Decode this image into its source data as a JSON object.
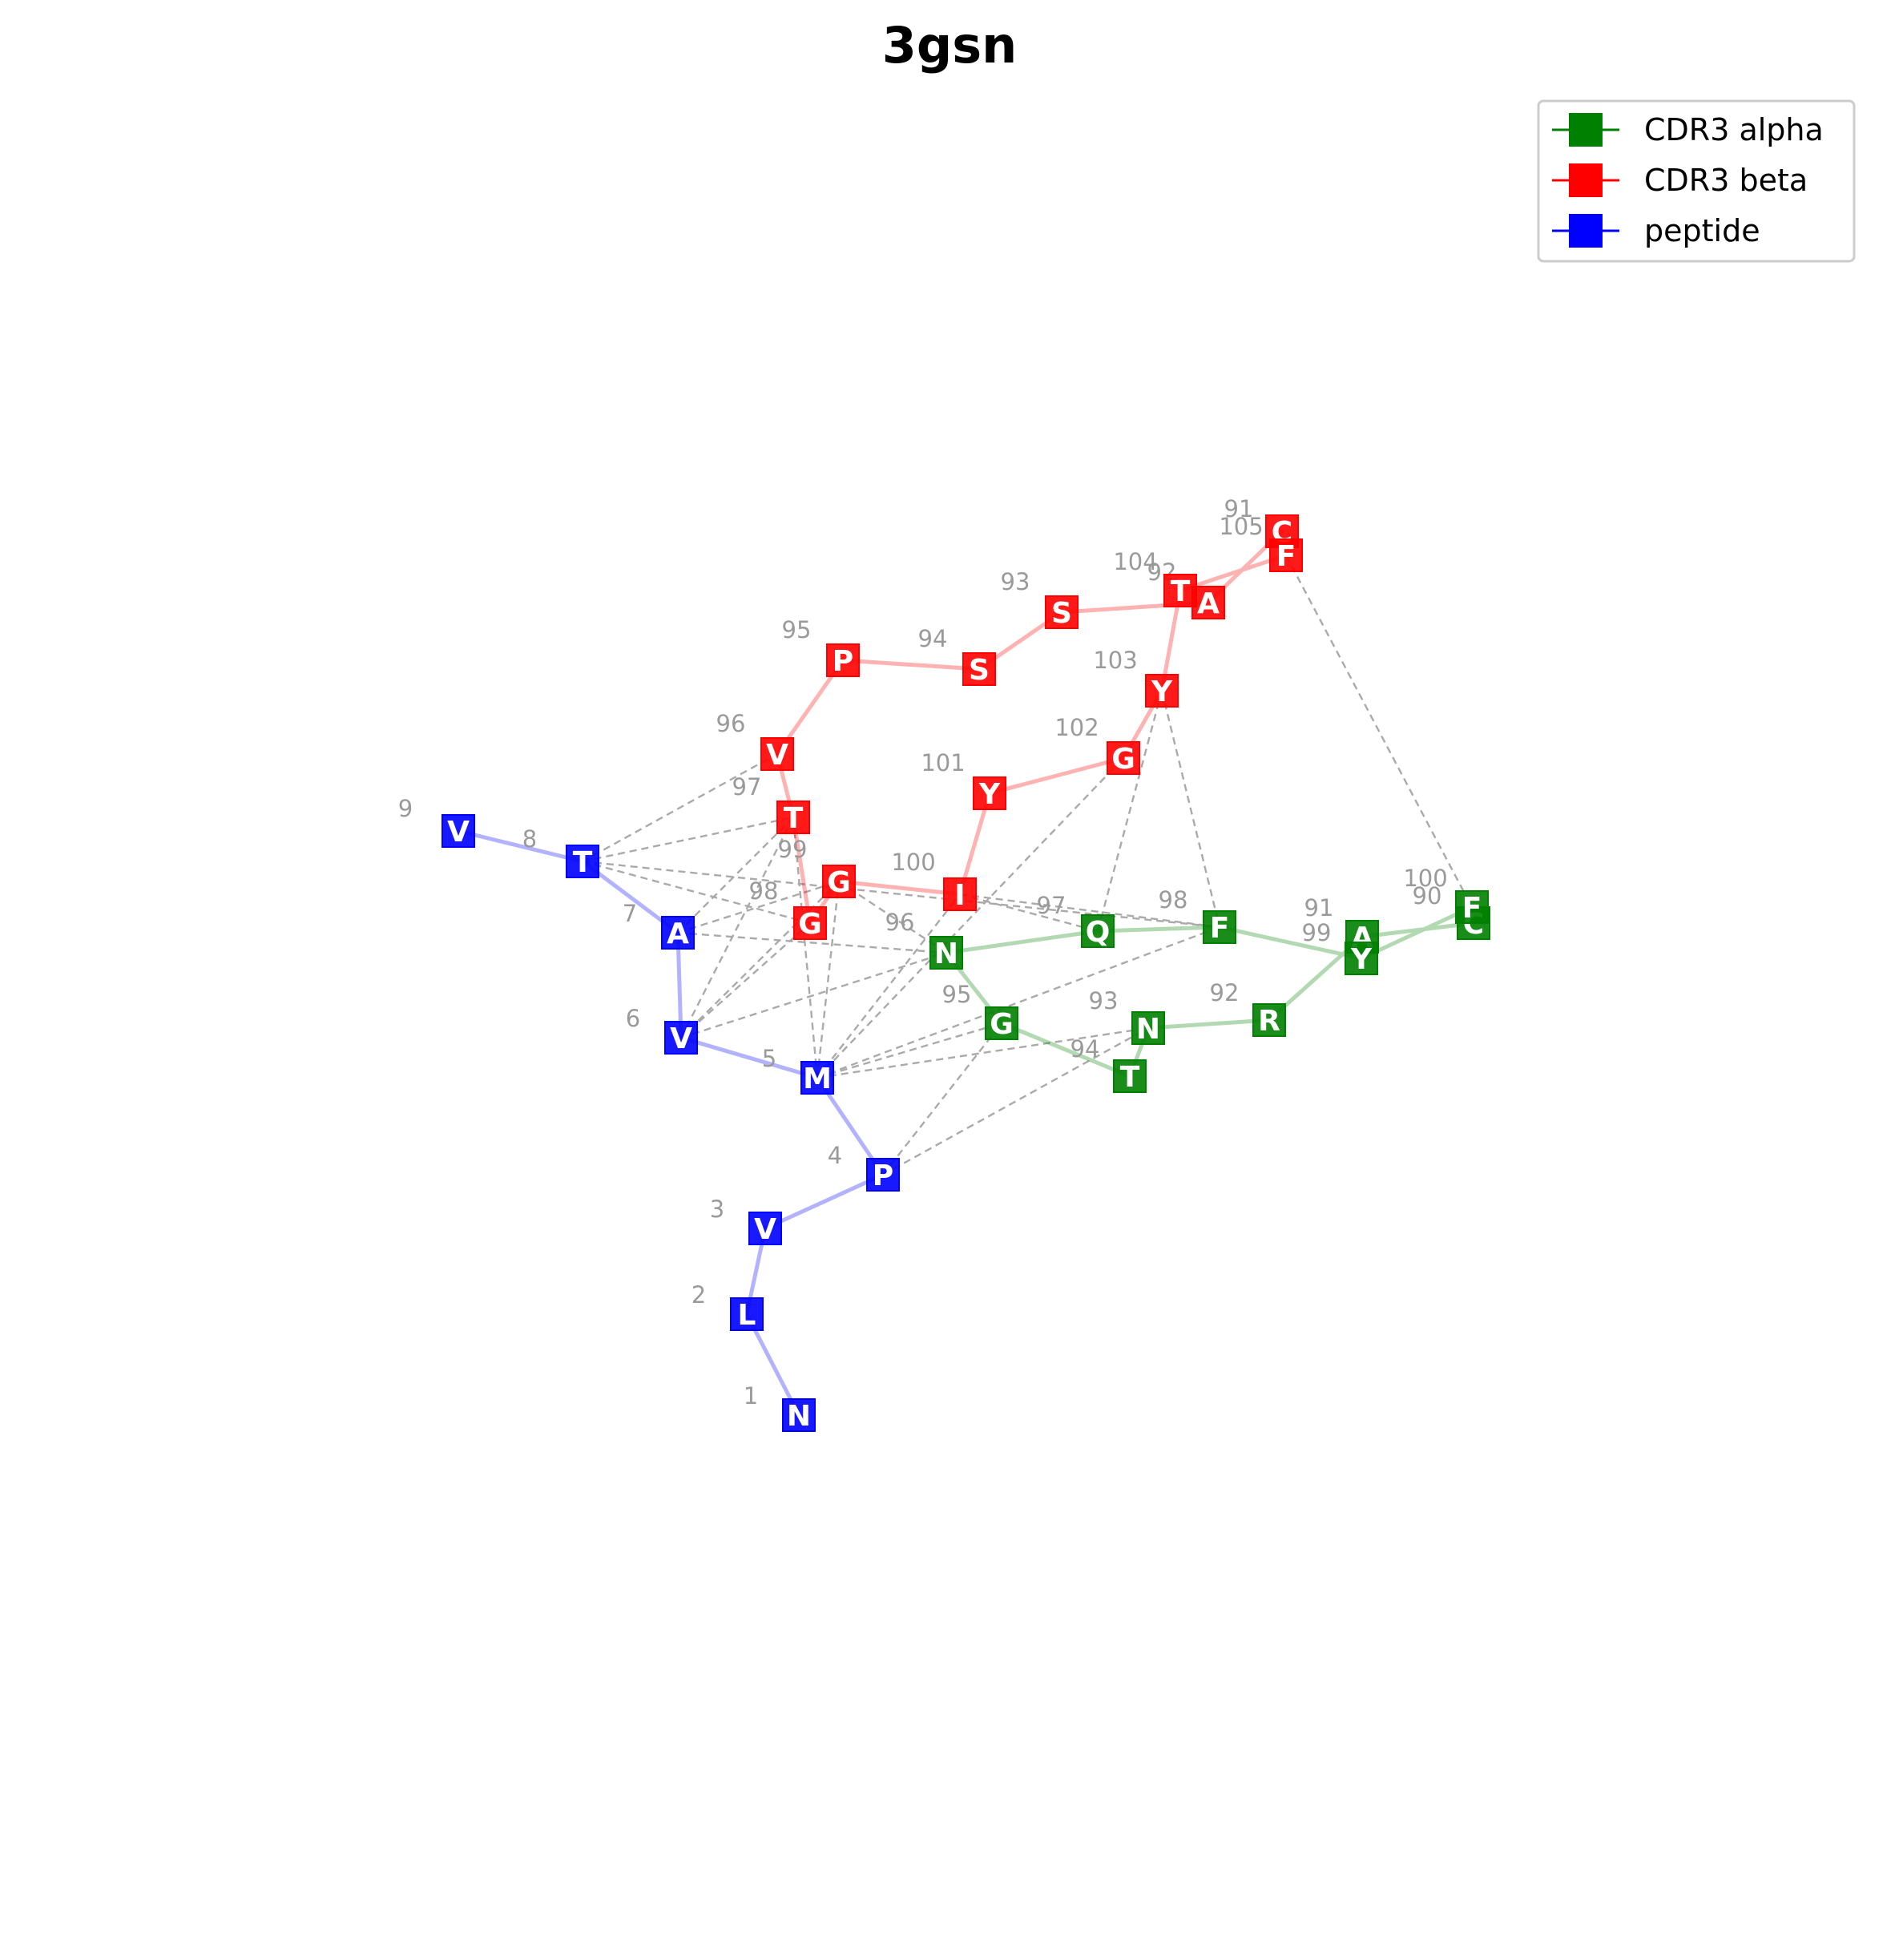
{
  "title": "3gsn",
  "colors": {
    "alpha": "#008000",
    "beta": "#ff0000",
    "peptide": "#0000ff",
    "contact": "#aaaaaa"
  },
  "legend": [
    {
      "label": "CDR3 alpha",
      "chain": "alpha"
    },
    {
      "label": "CDR3 beta",
      "chain": "beta"
    },
    {
      "label": "peptide",
      "chain": "peptide"
    }
  ],
  "chains": {
    "peptide": [
      {
        "num": "1",
        "aa": "N"
      },
      {
        "num": "2",
        "aa": "L"
      },
      {
        "num": "3",
        "aa": "V"
      },
      {
        "num": "4",
        "aa": "P"
      },
      {
        "num": "5",
        "aa": "M"
      },
      {
        "num": "6",
        "aa": "V"
      },
      {
        "num": "7",
        "aa": "A"
      },
      {
        "num": "8",
        "aa": "T"
      },
      {
        "num": "9",
        "aa": "V"
      }
    ],
    "beta": [
      {
        "num": "91",
        "aa": "C"
      },
      {
        "num": "92",
        "aa": "A"
      },
      {
        "num": "93",
        "aa": "S"
      },
      {
        "num": "94",
        "aa": "S"
      },
      {
        "num": "95",
        "aa": "P"
      },
      {
        "num": "96",
        "aa": "V"
      },
      {
        "num": "97",
        "aa": "T"
      },
      {
        "num": "98",
        "aa": "G"
      },
      {
        "num": "99",
        "aa": "G"
      },
      {
        "num": "100",
        "aa": "I"
      },
      {
        "num": "101",
        "aa": "Y"
      },
      {
        "num": "102",
        "aa": "G"
      },
      {
        "num": "103",
        "aa": "Y"
      },
      {
        "num": "104",
        "aa": "T"
      },
      {
        "num": "105",
        "aa": "F"
      }
    ],
    "alpha": [
      {
        "num": "90",
        "aa": "C"
      },
      {
        "num": "91",
        "aa": "A"
      },
      {
        "num": "92",
        "aa": "R"
      },
      {
        "num": "93",
        "aa": "N"
      },
      {
        "num": "94",
        "aa": "T"
      },
      {
        "num": "95",
        "aa": "G"
      },
      {
        "num": "96",
        "aa": "N"
      },
      {
        "num": "97",
        "aa": "Q"
      },
      {
        "num": "98",
        "aa": "F"
      },
      {
        "num": "99",
        "aa": "Y"
      },
      {
        "num": "100",
        "aa": "F"
      }
    ]
  },
  "contacts": [
    [
      "peptide",
      "8",
      "beta",
      "96"
    ],
    [
      "peptide",
      "8",
      "beta",
      "97"
    ],
    [
      "peptide",
      "8",
      "beta",
      "98"
    ],
    [
      "peptide",
      "8",
      "alpha",
      "98"
    ],
    [
      "peptide",
      "7",
      "beta",
      "97"
    ],
    [
      "peptide",
      "7",
      "beta",
      "99"
    ],
    [
      "peptide",
      "7",
      "alpha",
      "96"
    ],
    [
      "peptide",
      "6",
      "beta",
      "97"
    ],
    [
      "peptide",
      "6",
      "beta",
      "98"
    ],
    [
      "peptide",
      "6",
      "beta",
      "99"
    ],
    [
      "peptide",
      "6",
      "alpha",
      "96"
    ],
    [
      "peptide",
      "5",
      "beta",
      "97"
    ],
    [
      "peptide",
      "5",
      "beta",
      "99"
    ],
    [
      "peptide",
      "5",
      "beta",
      "100"
    ],
    [
      "peptide",
      "5",
      "beta",
      "102"
    ],
    [
      "peptide",
      "5",
      "alpha",
      "95"
    ],
    [
      "peptide",
      "5",
      "alpha",
      "93"
    ],
    [
      "peptide",
      "5",
      "alpha",
      "98"
    ],
    [
      "peptide",
      "4",
      "alpha",
      "95"
    ],
    [
      "peptide",
      "4",
      "alpha",
      "93"
    ],
    [
      "beta",
      "99",
      "alpha",
      "96"
    ],
    [
      "beta",
      "100",
      "alpha",
      "97"
    ],
    [
      "beta",
      "100",
      "alpha",
      "98"
    ],
    [
      "beta",
      "103",
      "alpha",
      "97"
    ],
    [
      "beta",
      "103",
      "alpha",
      "98"
    ],
    [
      "beta",
      "105",
      "alpha",
      "100"
    ]
  ]
}
